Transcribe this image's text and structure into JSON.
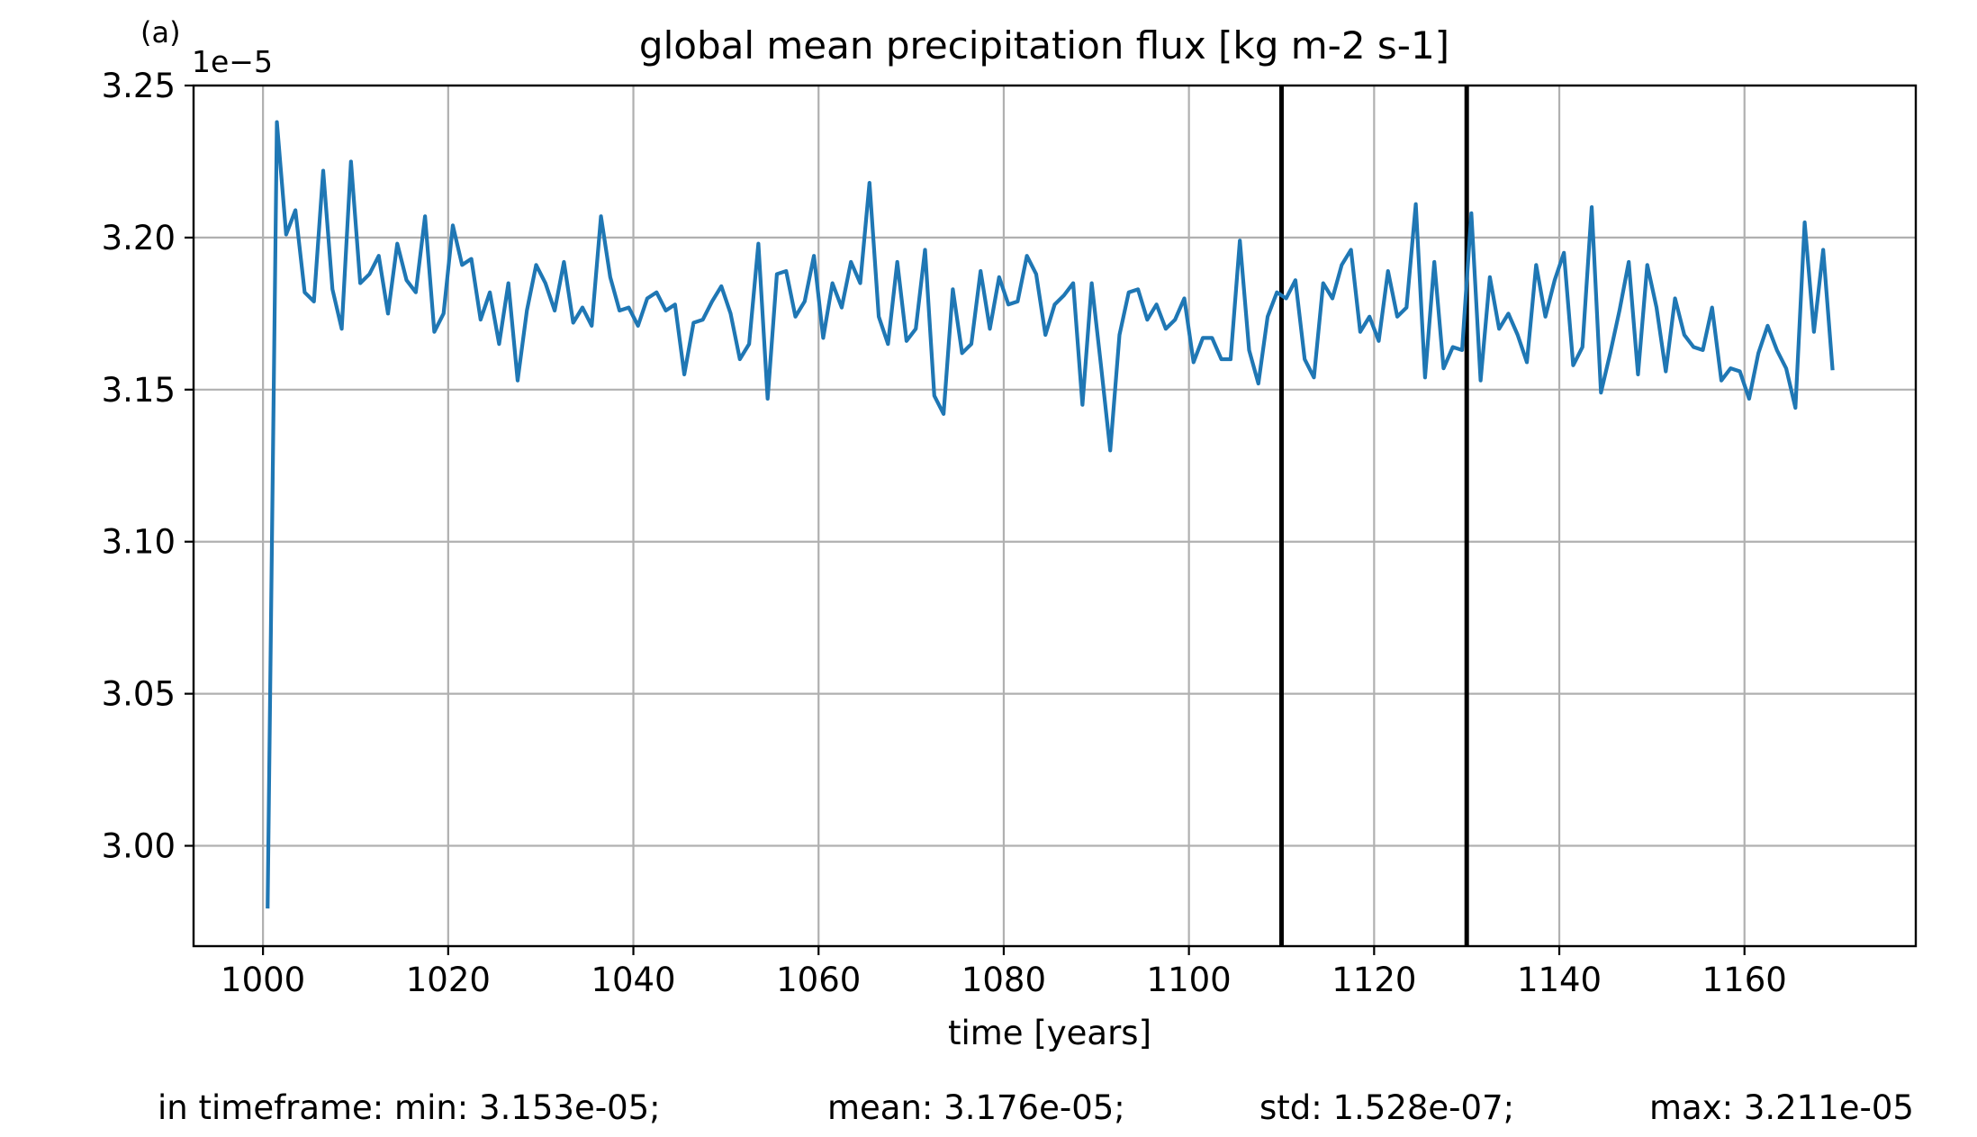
{
  "panel_label": "(a)",
  "offset_label": "1e−5",
  "footer": {
    "min": "in timeframe: min: 3.153e-05;",
    "mean": "mean: 3.176e-05;",
    "std": "std: 1.528e-07;",
    "max": "max: 3.211e-05"
  },
  "colors": {
    "series": "#1f77b4",
    "grid": "#b0b0b0",
    "vline": "#000000"
  },
  "chart_data": {
    "type": "line",
    "title": "global mean precipitation flux [kg m-2 s-1]",
    "xlabel": "time [years]",
    "ylabel": "",
    "xlim": [
      992.5,
      1178.5
    ],
    "ylim": [
      2.967,
      3.25
    ],
    "y_offset_exponent": -5,
    "xticks": [
      1000,
      1020,
      1040,
      1060,
      1080,
      1100,
      1120,
      1140,
      1160
    ],
    "xtick_labels": [
      "1000",
      "1020",
      "1040",
      "1060",
      "1080",
      "1100",
      "1120",
      "1140",
      "1160"
    ],
    "yticks": [
      3.0,
      3.05,
      3.1,
      3.15,
      3.2,
      3.25
    ],
    "ytick_labels": [
      "3.00",
      "3.05",
      "3.10",
      "3.15",
      "3.20",
      "3.25"
    ],
    "grid": true,
    "vertical_lines": [
      1110,
      1130
    ],
    "x_start": 1000.5,
    "x_step": 1,
    "series": [
      {
        "values": [
          2.98,
          3.238,
          3.201,
          3.209,
          3.182,
          3.179,
          3.222,
          3.183,
          3.17,
          3.225,
          3.185,
          3.188,
          3.194,
          3.175,
          3.198,
          3.186,
          3.182,
          3.207,
          3.169,
          3.175,
          3.204,
          3.191,
          3.193,
          3.173,
          3.182,
          3.165,
          3.185,
          3.153,
          3.176,
          3.191,
          3.185,
          3.176,
          3.192,
          3.172,
          3.177,
          3.171,
          3.207,
          3.187,
          3.176,
          3.177,
          3.171,
          3.18,
          3.182,
          3.176,
          3.178,
          3.155,
          3.172,
          3.173,
          3.179,
          3.184,
          3.175,
          3.16,
          3.165,
          3.198,
          3.147,
          3.188,
          3.189,
          3.174,
          3.179,
          3.194,
          3.167,
          3.185,
          3.177,
          3.192,
          3.185,
          3.218,
          3.174,
          3.165,
          3.192,
          3.166,
          3.17,
          3.196,
          3.148,
          3.142,
          3.183,
          3.162,
          3.165,
          3.189,
          3.17,
          3.187,
          3.178,
          3.179,
          3.194,
          3.188,
          3.168,
          3.178,
          3.181,
          3.185,
          3.145,
          3.185,
          3.158,
          3.13,
          3.168,
          3.182,
          3.183,
          3.173,
          3.178,
          3.17,
          3.173,
          3.18,
          3.159,
          3.167,
          3.167,
          3.16,
          3.16,
          3.199,
          3.163,
          3.152,
          3.174,
          3.182,
          3.18,
          3.186,
          3.16,
          3.154,
          3.185,
          3.18,
          3.191,
          3.196,
          3.169,
          3.174,
          3.166,
          3.189,
          3.174,
          3.177,
          3.211,
          3.154,
          3.192,
          3.157,
          3.164,
          3.163,
          3.208,
          3.153,
          3.187,
          3.17,
          3.175,
          3.168,
          3.159,
          3.191,
          3.174,
          3.186,
          3.195,
          3.158,
          3.164,
          3.21,
          3.149,
          3.162,
          3.176,
          3.192,
          3.155,
          3.191,
          3.177,
          3.156,
          3.18,
          3.168,
          3.164,
          3.163,
          3.177,
          3.153,
          3.157,
          3.156,
          3.147,
          3.162,
          3.171,
          3.163,
          3.157,
          3.144,
          3.205,
          3.169,
          3.196,
          3.157
        ]
      }
    ]
  }
}
